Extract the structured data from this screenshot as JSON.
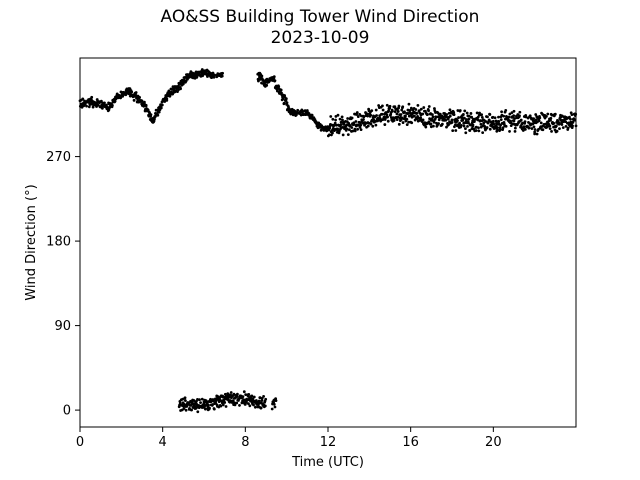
{
  "chart_data": {
    "type": "scatter",
    "title": "AO&SS Building Tower Wind Direction",
    "subtitle": "2023-10-09",
    "xlabel": "Time (UTC)",
    "ylabel": "Wind Direction (°)",
    "xlim": [
      0,
      24
    ],
    "ylim": [
      -18,
      375
    ],
    "xticks": [
      0,
      4,
      8,
      12,
      16,
      20
    ],
    "yticks": [
      0,
      90,
      180,
      270
    ],
    "grid": false,
    "marker_color": "#000000",
    "segments": [
      {
        "x": [
          0.0,
          0.5,
          1.0,
          1.4
        ],
        "y": [
          326,
          328,
          326,
          323
        ],
        "noise": 4
      },
      {
        "x": [
          1.4,
          1.8,
          2.3,
          2.8,
          3.2,
          3.5,
          3.8,
          4.2,
          4.6,
          5.0,
          5.4
        ],
        "y": [
          323,
          334,
          340,
          332,
          322,
          308,
          320,
          334,
          342,
          350,
          358
        ],
        "noise": 4
      },
      {
        "x": [
          5.4,
          6.0,
          6.5
        ],
        "y": [
          356,
          359,
          357
        ],
        "noise": 3
      },
      {
        "x": [
          6.6,
          6.9
        ],
        "y": [
          356,
          357
        ],
        "noise": 2
      },
      {
        "x": [
          4.8,
          5.5,
          6.2,
          6.6,
          7.0,
          7.5,
          8.0,
          8.5,
          9.0
        ],
        "y": [
          6,
          5,
          6,
          8,
          11,
          12,
          12,
          10,
          8
        ],
        "noise": 6
      },
      {
        "x": [
          9.3,
          9.5
        ],
        "y": [
          4,
          10
        ],
        "noise": 7
      },
      {
        "x": [
          8.6,
          9.0,
          9.3,
          9.6,
          9.9,
          10.1
        ],
        "y": [
          357,
          348,
          356,
          340,
          330,
          320
        ],
        "noise": 5
      },
      {
        "x": [
          10.1,
          10.5,
          11.0,
          11.3,
          11.7,
          12.0
        ],
        "y": [
          319,
          316,
          317,
          310,
          300,
          299
        ],
        "noise": 3
      },
      {
        "x": [
          12.0,
          13.0,
          14.0,
          15.0,
          16.0,
          17.0,
          18.0,
          19.0,
          20.0,
          21.0,
          22.0,
          23.0,
          24.0
        ],
        "y": [
          300,
          304,
          312,
          316,
          314,
          312,
          310,
          306,
          306,
          308,
          305,
          308,
          308
        ],
        "noise": 9
      }
    ]
  }
}
